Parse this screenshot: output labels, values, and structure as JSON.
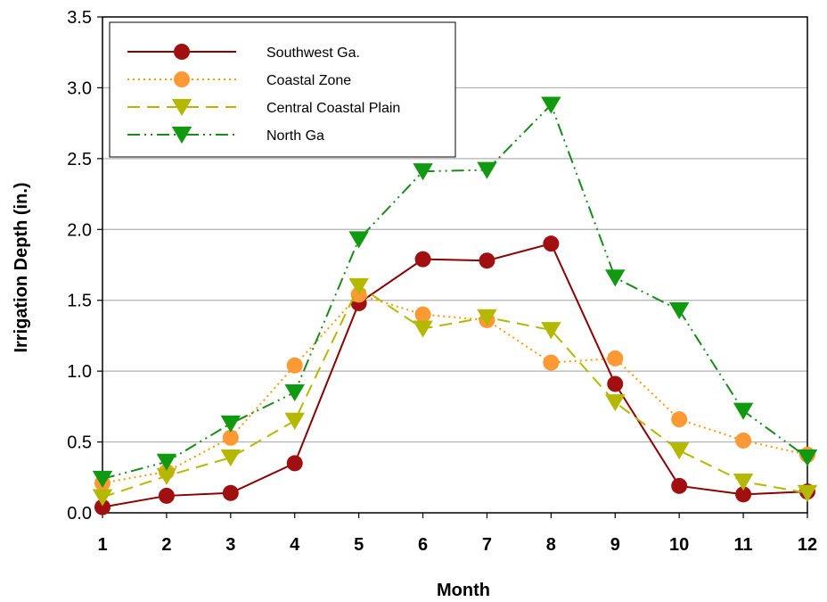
{
  "chart_data": {
    "type": "line",
    "xlabel": "Month",
    "ylabel": "Irrigation Depth (in.)",
    "x": [
      1,
      2,
      3,
      4,
      5,
      6,
      7,
      8,
      9,
      10,
      11,
      12
    ],
    "xlim": [
      1,
      12
    ],
    "ylim": [
      0,
      3.5
    ],
    "yticks": [
      "0.0",
      "0.5",
      "1.0",
      "1.5",
      "2.0",
      "2.5",
      "3.0",
      "3.5"
    ],
    "xticks": [
      "1",
      "2",
      "3",
      "4",
      "5",
      "6",
      "7",
      "8",
      "9",
      "10",
      "11",
      "12"
    ],
    "grid": "horizontal",
    "legend_position": "top-left",
    "series": [
      {
        "name": "Southwest Ga.",
        "color": "#8b0000",
        "line_style": "solid",
        "marker": "circle",
        "marker_color": "#a01010",
        "values": [
          0.04,
          0.12,
          0.14,
          0.35,
          1.48,
          1.79,
          1.78,
          1.9,
          0.91,
          0.19,
          0.13,
          0.15
        ]
      },
      {
        "name": "Coastal Zone",
        "color": "#ff9900",
        "line_style": "dotted",
        "marker": "circle",
        "marker_color": "#ff9933",
        "values": [
          0.21,
          0.29,
          0.53,
          1.04,
          1.54,
          1.4,
          1.36,
          1.06,
          1.09,
          0.66,
          0.51,
          0.41
        ]
      },
      {
        "name": "Central Coastal Plain",
        "color": "#b5b800",
        "line_style": "dashed",
        "marker": "triangle-down",
        "marker_color": "#b5b800",
        "values": [
          0.11,
          0.26,
          0.39,
          0.65,
          1.6,
          1.3,
          1.38,
          1.29,
          0.78,
          0.44,
          0.22,
          0.14
        ]
      },
      {
        "name": "North Ga",
        "color": "#1a8a1a",
        "line_style": "dash-dot-dot",
        "marker": "triangle-down",
        "marker_color": "#119911",
        "values": [
          0.24,
          0.36,
          0.63,
          0.85,
          1.93,
          2.41,
          2.42,
          2.88,
          1.66,
          1.43,
          0.72,
          0.39
        ]
      }
    ]
  }
}
